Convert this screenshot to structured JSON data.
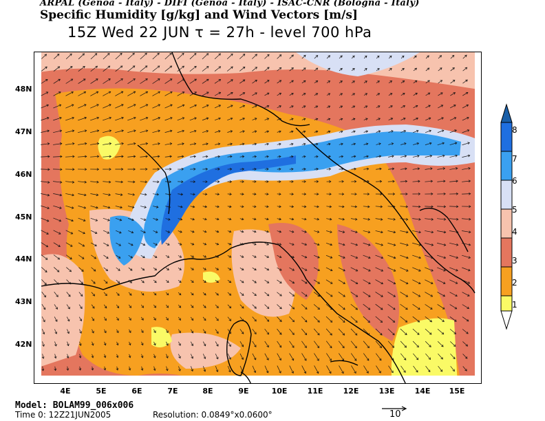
{
  "header": {
    "line1": "ARPAL (Genoa - Italy)  -  DIFI (Genoa - Italy)  -  ISAC-CNR (Bologna - Italy)",
    "line2": "Specific Humidity [g/kg] and Wind Vectors [m/s]",
    "line3": "15Z Wed 22 JUN  τ = 27h  -  level 700 hPa"
  },
  "lat_labels": [
    "48N",
    "47N",
    "46N",
    "45N",
    "44N",
    "43N",
    "42N"
  ],
  "lon_labels": [
    "4E",
    "5E",
    "6E",
    "7E",
    "8E",
    "9E",
    "10E",
    "11E",
    "12E",
    "13E",
    "14E",
    "15E"
  ],
  "colorbar": {
    "labels": [
      "8",
      "7",
      "6",
      "5",
      "4",
      "3",
      "2",
      "1"
    ],
    "colors": {
      "c8": "#1a5fa8",
      "c7": "#1f6fe0",
      "c6": "#3aa0f0",
      "c5": "#d8e0f5",
      "c4": "#f7c3ae",
      "c3": "#e4765e",
      "c2": "#f7a020",
      "c1": "#fafa66"
    }
  },
  "footer": {
    "model": "Model: BOLAM99_006x006",
    "time": "Time 0: 12Z21JUN2005",
    "resolution": "Resolution: 0.0849°x0.0600°",
    "ref_vector": "10"
  }
}
